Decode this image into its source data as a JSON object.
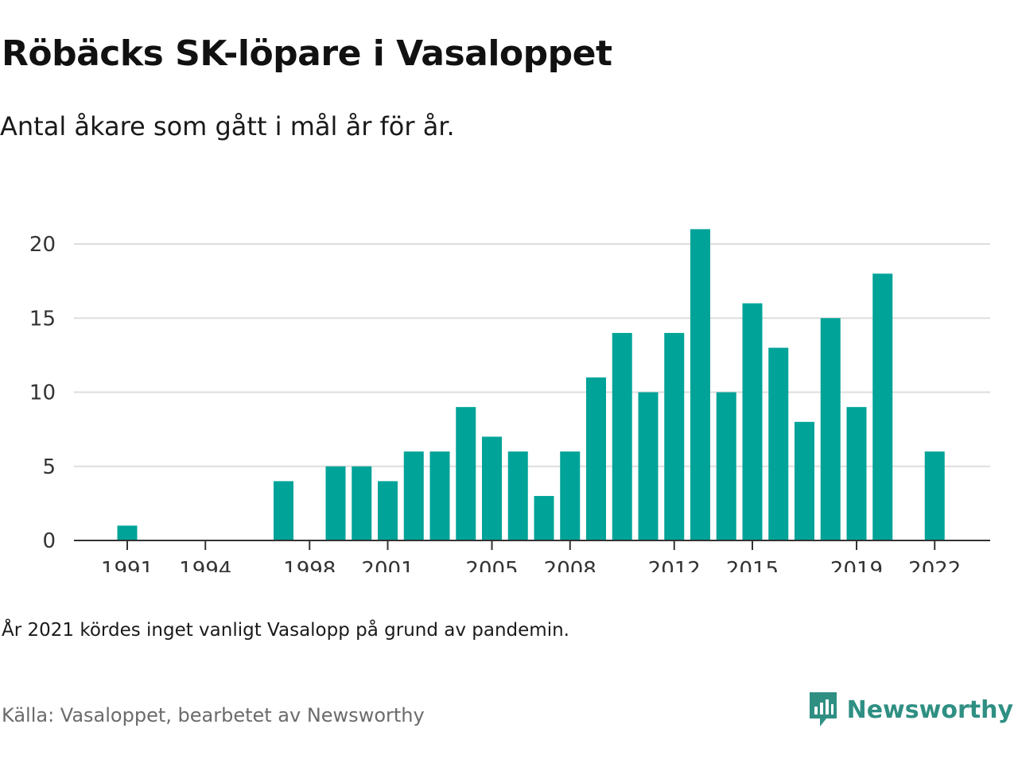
{
  "header": {
    "title": "Röbäcks SK-löpare i Vasaloppet",
    "subtitle": "Antal åkare som gått i mål år för år."
  },
  "footer": {
    "note": "År 2021 kördes inget vanligt Vasalopp på grund av pandemin.",
    "source": "Källa: Vasaloppet, bearbetet av Newsworthy",
    "brand": "Newsworthy"
  },
  "colors": {
    "bar": "#00a398",
    "grid": "#dddddd",
    "axis": "#333333",
    "brand": "#2f8f83"
  },
  "icons": {
    "brand_logo": "newsworthy-logo-icon"
  },
  "chart_data": {
    "type": "bar",
    "x": [
      1991,
      1992,
      1993,
      1994,
      1995,
      1996,
      1997,
      1998,
      1999,
      2000,
      2001,
      2002,
      2003,
      2004,
      2005,
      2006,
      2007,
      2008,
      2009,
      2010,
      2011,
      2012,
      2013,
      2014,
      2015,
      2016,
      2017,
      2018,
      2019,
      2020,
      2021,
      2022
    ],
    "values": [
      1,
      0,
      0,
      0,
      0,
      0,
      4,
      0,
      5,
      5,
      4,
      6,
      6,
      9,
      7,
      6,
      3,
      6,
      11,
      14,
      10,
      14,
      21,
      10,
      16,
      13,
      8,
      15,
      9,
      18,
      null,
      6
    ],
    "x_tick_labels": [
      "1991",
      "1994",
      "1998",
      "2001",
      "2005",
      "2008",
      "2012",
      "2015",
      "2019",
      "2022"
    ],
    "y_ticks": [
      0,
      5,
      10,
      15,
      20
    ],
    "ylim": [
      0,
      21
    ],
    "xlabel": "",
    "ylabel": "",
    "grid": "horizontal",
    "legend": "none"
  }
}
